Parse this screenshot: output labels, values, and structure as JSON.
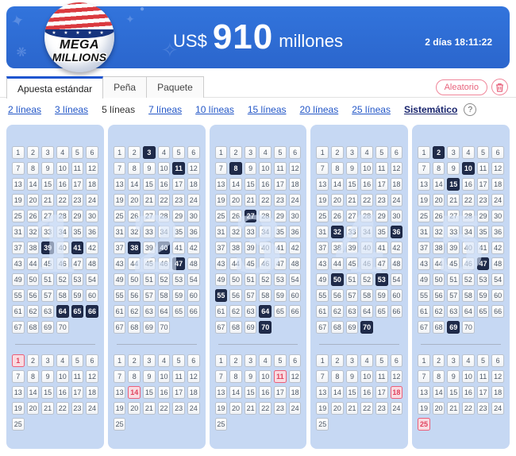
{
  "header": {
    "logo_line1": "MEGA",
    "logo_line2": "MILLIONS",
    "logo_stars": "★ ★ ★ ★ ★",
    "currency": "US$",
    "amount": "910",
    "unit": "millones",
    "countdown": "2 días 18:11:22"
  },
  "tabs": [
    {
      "label": "Apuesta estándar",
      "active": true
    },
    {
      "label": "Peña",
      "active": false
    },
    {
      "label": "Paquete",
      "active": false
    }
  ],
  "actions": {
    "random_label": "Aleatorio"
  },
  "line_options": [
    {
      "label": "2 líneas",
      "state": "link"
    },
    {
      "label": "3 líneas",
      "state": "link"
    },
    {
      "label": "5 líneas",
      "state": "selected"
    },
    {
      "label": "7 líneas",
      "state": "link"
    },
    {
      "label": "10 líneas",
      "state": "link"
    },
    {
      "label": "15 líneas",
      "state": "link"
    },
    {
      "label": "20 líneas",
      "state": "link"
    },
    {
      "label": "25 líneas",
      "state": "link"
    },
    {
      "label": "Sistemático",
      "state": "systematic"
    }
  ],
  "help_label": "?",
  "grids": {
    "main_max": 70,
    "mega_max": 25,
    "columns": 6,
    "lines": [
      {
        "number": "1",
        "selected_main": [
          39,
          41,
          64,
          65,
          66
        ],
        "selected_mega": [
          1
        ]
      },
      {
        "number": "2",
        "selected_main": [
          3,
          11,
          38,
          40,
          47
        ],
        "selected_mega": [
          14
        ]
      },
      {
        "number": "3",
        "selected_main": [
          8,
          27,
          55,
          64,
          70
        ],
        "selected_mega": [
          11
        ]
      },
      {
        "number": "4",
        "selected_main": [
          32,
          36,
          50,
          53,
          70
        ],
        "selected_mega": [
          18
        ]
      },
      {
        "number": "5",
        "selected_main": [
          2,
          10,
          15,
          47,
          69
        ],
        "selected_mega": [
          25
        ]
      }
    ]
  },
  "colors": {
    "banner_blue": "#2d6ed5",
    "selected_cell": "#1f2b4a",
    "panel_blue": "#c6d8f3",
    "link_blue": "#2256c7",
    "pink_accent": "#ec5f79",
    "tab_active_border": "#1d55cf"
  }
}
